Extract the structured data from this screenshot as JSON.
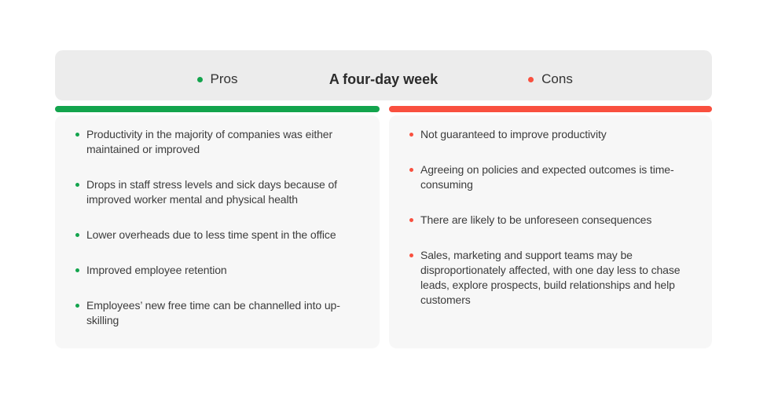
{
  "card": {
    "title": "A four-day week",
    "pros": {
      "label": "Pros",
      "items": [
        "Productivity in the majority of companies was either maintained or improved",
        "Drops in staff stress levels and sick days because of improved worker mental and physical health",
        "Lower overheads due to less time spent in the office",
        "Improved employee retention",
        "Employees’ new free time can be channelled into up-skilling"
      ]
    },
    "cons": {
      "label": "Cons",
      "items": [
        "Not guaranteed to improve productivity",
        "Agreeing on policies and expected outcomes is time-consuming",
        "There are likely to be unforeseen consequences",
        "Sales, marketing and support teams may be disproportionately affected, with one day less to chase leads, explore prospects, build relationships and help customers"
      ]
    }
  },
  "colors": {
    "green": "#13a44d",
    "red": "#f9503f",
    "header_bg": "#ececec",
    "panel_bg": "#f7f7f7",
    "title_text": "#2b2b2b",
    "body_text": "#3c3c3c"
  }
}
